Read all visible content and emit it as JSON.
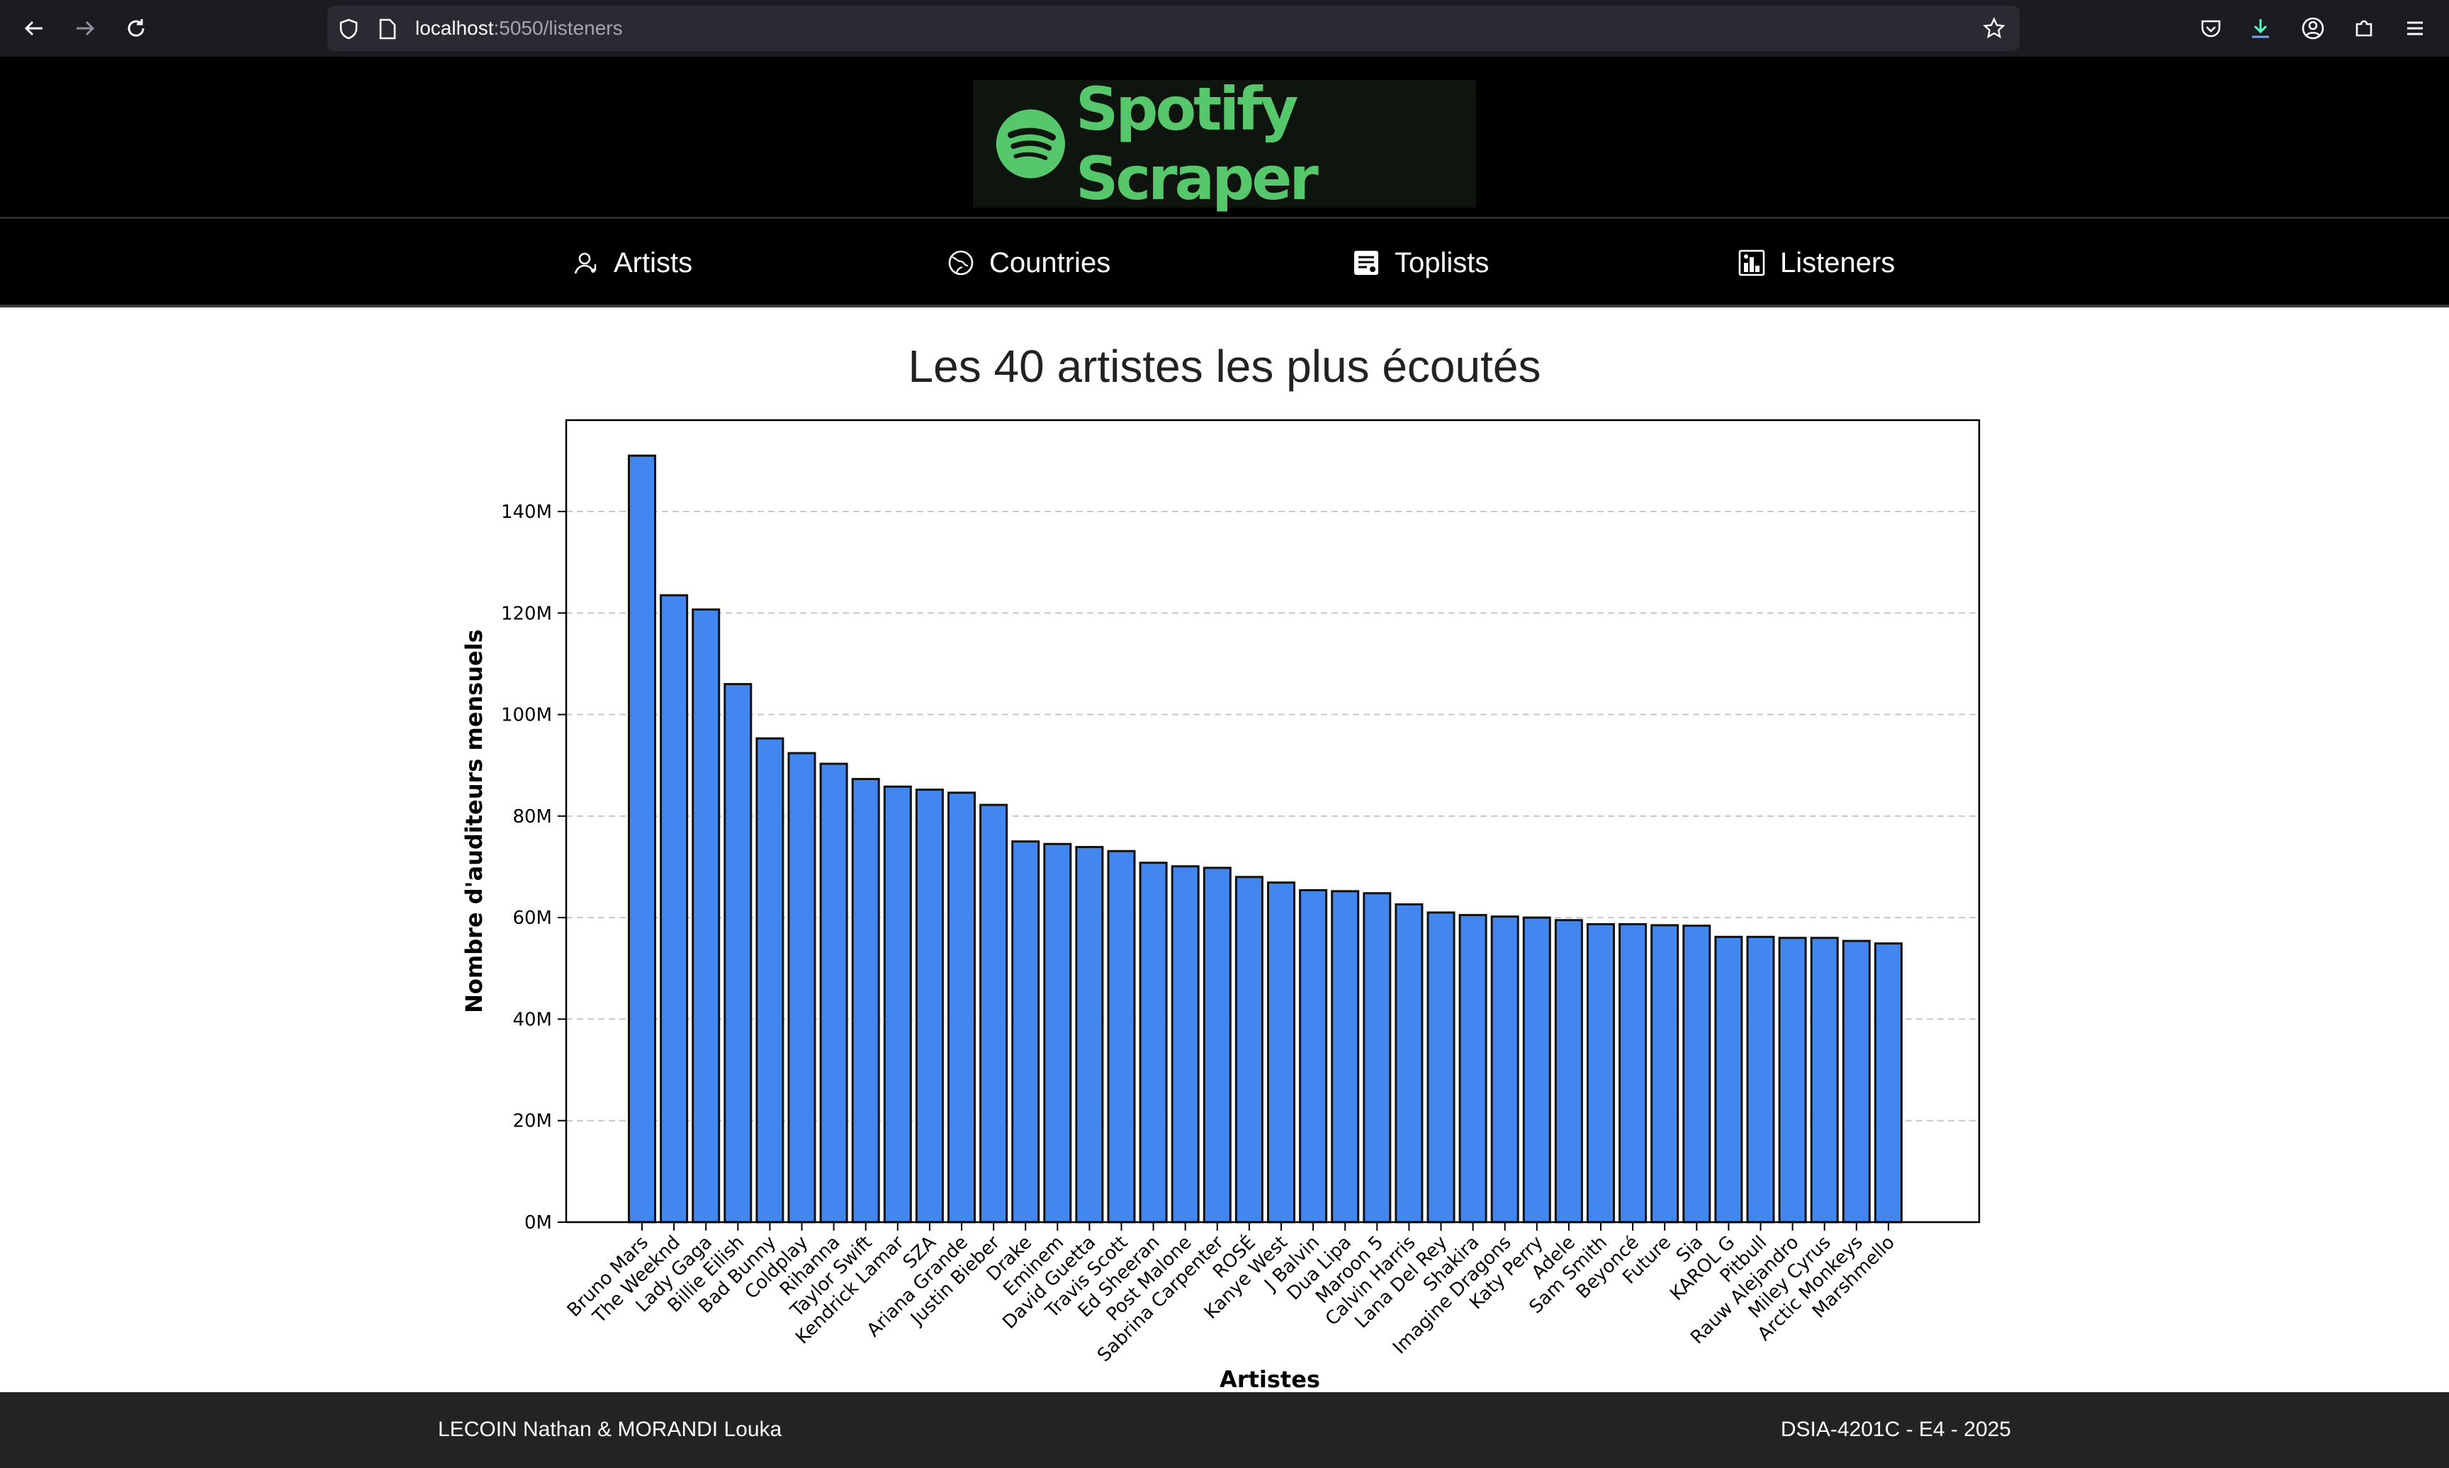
{
  "browser": {
    "url_host": "localhost",
    "url_path": ":5050/listeners"
  },
  "site": {
    "logo_text": "Spotify Scraper",
    "brand_color": "#56c86b"
  },
  "nav": {
    "items": [
      {
        "label": "Artists",
        "icon": "artist-icon"
      },
      {
        "label": "Countries",
        "icon": "globe-icon"
      },
      {
        "label": "Toplists",
        "icon": "list-icon"
      },
      {
        "label": "Listeners",
        "icon": "chart-icon"
      }
    ]
  },
  "page": {
    "title": "Les 40 artistes les plus écoutés"
  },
  "footer": {
    "left": "LECOIN Nathan & MORANDI Louka",
    "right": "DSIA-4201C - E4 - 2025"
  },
  "chart_data": {
    "type": "bar",
    "xlabel": "Artistes",
    "ylabel": "Nombre d'auditeurs mensuels",
    "ylim": [
      0,
      158
    ],
    "yticks": [
      0,
      20,
      40,
      60,
      80,
      100,
      120,
      140
    ],
    "ytick_labels": [
      "0M",
      "20M",
      "40M",
      "60M",
      "80M",
      "100M",
      "120M",
      "140M"
    ],
    "grid": "y-dashed",
    "bar_color": "#4287f0",
    "categories": [
      "Bruno Mars",
      "The Weeknd",
      "Lady Gaga",
      "Billie Eilish",
      "Bad Bunny",
      "Coldplay",
      "Rihanna",
      "Taylor Swift",
      "Kendrick Lamar",
      "SZA",
      "Ariana Grande",
      "Justin Bieber",
      "Drake",
      "Eminem",
      "David Guetta",
      "Travis Scott",
      "Ed Sheeran",
      "Post Malone",
      "Sabrina Carpenter",
      "ROSÉ",
      "Kanye West",
      "J Balvin",
      "Dua Lipa",
      "Maroon 5",
      "Calvin Harris",
      "Lana Del Rey",
      "Shakira",
      "Imagine Dragons",
      "Katy Perry",
      "Adele",
      "Sam Smith",
      "Beyoncé",
      "Future",
      "Sia",
      "KAROL G",
      "Pitbull",
      "Rauw Alejandro",
      "Miley Cyrus",
      "Arctic Monkeys",
      "Marshmello"
    ],
    "values": [
      151,
      123.5,
      120.7,
      106,
      95.3,
      92.4,
      90.3,
      87.3,
      85.8,
      85.2,
      84.6,
      82.2,
      75,
      74.5,
      73.9,
      73.1,
      70.8,
      70.1,
      69.8,
      68,
      66.9,
      65.4,
      65.2,
      64.8,
      62.6,
      61,
      60.5,
      60.2,
      60,
      59.5,
      58.7,
      58.7,
      58.5,
      58.4,
      56.2,
      56.2,
      56,
      56,
      55.4,
      54.9
    ]
  }
}
